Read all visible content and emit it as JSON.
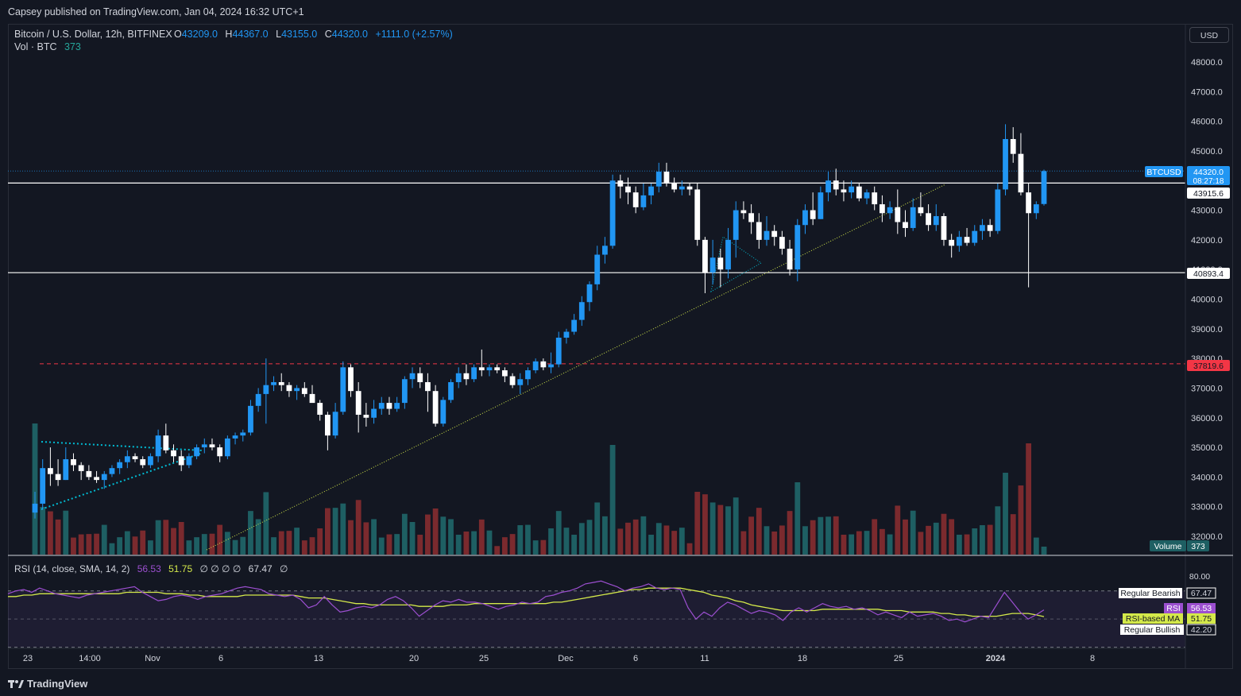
{
  "header": {
    "published": "Capsey published on TradingView.com, Jan 04, 2024 16:32 UTC+1"
  },
  "legend": {
    "symbol": "Bitcoin / U.S. Dollar, 12h, BITFINEX",
    "o_label": "O",
    "o_value": "43209.0",
    "h_label": "H",
    "h_value": "44367.0",
    "l_label": "L",
    "l_value": "43155.0",
    "c_label": "C",
    "c_value": "44320.0",
    "change": "+1111.0 (+2.57%)",
    "vol_label": "Vol · BTC",
    "vol_value": "373"
  },
  "currency": "USD",
  "rsi_legend": {
    "label": "RSI (14, close, SMA, 14, 2)",
    "rsi": "56.53",
    "ma": "51.75",
    "blanks": "∅ ∅ ∅ ∅",
    "bear": "67.47",
    "blank2": "∅"
  },
  "footer": {
    "brand": "TradingView"
  },
  "colors": {
    "up": "#2196f3",
    "down": "#ffffff",
    "vol_up": "#1e5f63",
    "vol_down": "#7b2a2e",
    "rsi": "#9c4fd0",
    "rsi_ma": "#d4e94a",
    "red_line": "#f23645"
  },
  "chart_data": [
    {
      "type": "candlestick",
      "title": "Bitcoin / U.S. Dollar, 12h, BITFINEX",
      "y_axis_ticks": [
        "48000.0",
        "47000.0",
        "46000.0",
        "45000.0",
        "44000.0",
        "43000.0",
        "42000.0",
        "41000.0",
        "40000.0",
        "39000.0",
        "38000.0",
        "37000.0",
        "36000.0",
        "35000.0",
        "34000.0",
        "33000.0",
        "32000.0"
      ],
      "ylim": [
        31400,
        48900
      ],
      "x_axis_ticks": [
        "23",
        "14:00",
        "Nov",
        "6",
        "13",
        "20",
        "25",
        "Dec",
        "6",
        "11",
        "18",
        "25",
        "2024",
        "8"
      ],
      "price_tags": {
        "last": {
          "label": "BTCUSD",
          "value": "44320.0",
          "countdown": "08:27:18"
        },
        "resistance": "43915.6",
        "support": "40893.4",
        "red_level": "37819.6",
        "volume": {
          "label": "Volume",
          "value": "373"
        }
      },
      "horizontal_levels": [
        43915.6,
        40893.4,
        37819.6
      ],
      "candles_ohlc": [
        [
          32800,
          33500,
          32600,
          33100
        ],
        [
          33100,
          34600,
          32900,
          34300
        ],
        [
          34300,
          35000,
          33700,
          34100
        ],
        [
          34100,
          34600,
          33700,
          33900
        ],
        [
          33900,
          35000,
          33900,
          34600
        ],
        [
          34600,
          34800,
          34200,
          34400
        ],
        [
          34400,
          34500,
          33900,
          34200
        ],
        [
          34200,
          34400,
          33900,
          34000
        ],
        [
          34000,
          34200,
          33800,
          33900
        ],
        [
          33900,
          34200,
          33600,
          34100
        ],
        [
          34100,
          34400,
          34000,
          34300
        ],
        [
          34300,
          34600,
          34100,
          34500
        ],
        [
          34500,
          34900,
          34300,
          34700
        ],
        [
          34700,
          34800,
          34500,
          34600
        ],
        [
          34600,
          34700,
          34300,
          34400
        ],
        [
          34400,
          34800,
          34300,
          34700
        ],
        [
          34700,
          35600,
          34500,
          35400
        ],
        [
          35400,
          35800,
          34800,
          34900
        ],
        [
          34900,
          35100,
          34500,
          34700
        ],
        [
          34700,
          34900,
          34200,
          34400
        ],
        [
          34400,
          34800,
          34300,
          34700
        ],
        [
          34700,
          35100,
          34600,
          35000
        ],
        [
          35000,
          35300,
          34800,
          35100
        ],
        [
          35100,
          35300,
          34900,
          35000
        ],
        [
          35000,
          35100,
          34500,
          34700
        ],
        [
          34700,
          35400,
          34600,
          35300
        ],
        [
          35300,
          35500,
          35100,
          35400
        ],
        [
          35400,
          35600,
          35200,
          35500
        ],
        [
          35500,
          36600,
          35400,
          36400
        ],
        [
          36400,
          37000,
          36200,
          36800
        ],
        [
          36800,
          38000,
          35800,
          37100
        ],
        [
          37100,
          37400,
          36900,
          37200
        ],
        [
          37200,
          37500,
          36900,
          37100
        ],
        [
          37100,
          37200,
          36700,
          36900
        ],
        [
          36900,
          37100,
          36600,
          37000
        ],
        [
          37000,
          37200,
          36700,
          36800
        ],
        [
          36800,
          37100,
          36600,
          36500
        ],
        [
          36500,
          36600,
          35900,
          36100
        ],
        [
          36100,
          36200,
          34900,
          35400
        ],
        [
          35400,
          36500,
          35300,
          36200
        ],
        [
          36200,
          37900,
          36100,
          37700
        ],
        [
          37700,
          37800,
          36700,
          36900
        ],
        [
          36900,
          37200,
          35500,
          36100
        ],
        [
          36100,
          36500,
          35700,
          36000
        ],
        [
          36000,
          36600,
          35800,
          36300
        ],
        [
          36300,
          36700,
          36100,
          36500
        ],
        [
          36500,
          36700,
          36100,
          36300
        ],
        [
          36300,
          36700,
          36200,
          36500
        ],
        [
          36500,
          37400,
          36300,
          37300
        ],
        [
          37300,
          37700,
          37000,
          37500
        ],
        [
          37500,
          37700,
          37000,
          37200
        ],
        [
          37200,
          37500,
          36200,
          36900
        ],
        [
          36900,
          37100,
          35700,
          35800
        ],
        [
          35800,
          36700,
          35700,
          36600
        ],
        [
          36600,
          37300,
          36500,
          37200
        ],
        [
          37200,
          37700,
          37000,
          37500
        ],
        [
          37500,
          37800,
          37100,
          37300
        ],
        [
          37300,
          37800,
          37200,
          37700
        ],
        [
          37700,
          38300,
          37400,
          37600
        ],
        [
          37600,
          37800,
          37400,
          37700
        ],
        [
          37700,
          37800,
          37500,
          37600
        ],
        [
          37600,
          37700,
          37200,
          37400
        ],
        [
          37400,
          37500,
          37000,
          37100
        ],
        [
          37100,
          37500,
          36800,
          37300
        ],
        [
          37300,
          37700,
          37100,
          37600
        ],
        [
          37600,
          38000,
          37500,
          37900
        ],
        [
          37900,
          38000,
          37600,
          37700
        ],
        [
          37700,
          38200,
          37500,
          37800
        ],
        [
          37800,
          38900,
          37700,
          38700
        ],
        [
          38700,
          39000,
          38500,
          38900
        ],
        [
          38900,
          39500,
          38800,
          39300
        ],
        [
          39300,
          40100,
          39100,
          39900
        ],
        [
          39900,
          40600,
          39600,
          40500
        ],
        [
          40500,
          41800,
          40300,
          41500
        ],
        [
          41500,
          42100,
          41200,
          41800
        ],
        [
          41800,
          44200,
          41700,
          44000
        ],
        [
          44000,
          44200,
          43400,
          43800
        ],
        [
          43800,
          44100,
          43200,
          43600
        ],
        [
          43600,
          43800,
          42900,
          43100
        ],
        [
          43100,
          43900,
          43000,
          43500
        ],
        [
          43500,
          43900,
          43200,
          43800
        ],
        [
          43800,
          44600,
          43600,
          44300
        ],
        [
          44300,
          44600,
          43800,
          43900
        ],
        [
          43900,
          44100,
          43600,
          43700
        ],
        [
          43700,
          44000,
          43500,
          43800
        ],
        [
          43800,
          43900,
          43500,
          43700
        ],
        [
          43700,
          43900,
          41800,
          42000
        ],
        [
          42000,
          42100,
          40200,
          40900
        ],
        [
          40900,
          42000,
          40500,
          41400
        ],
        [
          41400,
          41700,
          40400,
          41000
        ],
        [
          41000,
          42400,
          40700,
          42000
        ],
        [
          42000,
          43300,
          41400,
          43000
        ],
        [
          43000,
          43300,
          42700,
          42900
        ],
        [
          42900,
          43200,
          42200,
          42600
        ],
        [
          42600,
          42900,
          41700,
          42000
        ],
        [
          42000,
          42800,
          41800,
          42300
        ],
        [
          42300,
          42500,
          41800,
          42100
        ],
        [
          42100,
          42300,
          41500,
          41700
        ],
        [
          41700,
          42000,
          40800,
          41000
        ],
        [
          41000,
          42700,
          40600,
          42500
        ],
        [
          42500,
          43200,
          42200,
          43000
        ],
        [
          43000,
          43600,
          42500,
          42700
        ],
        [
          42700,
          43800,
          42700,
          43600
        ],
        [
          43600,
          44300,
          43300,
          44000
        ],
        [
          44000,
          44400,
          43500,
          43700
        ],
        [
          43700,
          44000,
          43300,
          43600
        ],
        [
          43600,
          44000,
          43400,
          43800
        ],
        [
          43800,
          43900,
          43300,
          43400
        ],
        [
          43400,
          43700,
          43200,
          43600
        ],
        [
          43600,
          43800,
          43000,
          43200
        ],
        [
          43200,
          43500,
          42600,
          42900
        ],
        [
          42900,
          43300,
          42700,
          43100
        ],
        [
          43100,
          43700,
          42200,
          42600
        ],
        [
          42600,
          43000,
          42100,
          42400
        ],
        [
          42400,
          43400,
          42300,
          43100
        ],
        [
          43100,
          43600,
          42800,
          42900
        ],
        [
          42900,
          43200,
          42300,
          42500
        ],
        [
          42500,
          43200,
          42300,
          42800
        ],
        [
          42800,
          42900,
          41800,
          42000
        ],
        [
          42000,
          42200,
          41400,
          41800
        ],
        [
          41800,
          42300,
          41600,
          42100
        ],
        [
          42100,
          42400,
          41800,
          41900
        ],
        [
          41900,
          42500,
          41800,
          42300
        ],
        [
          42300,
          42700,
          42000,
          42500
        ],
        [
          42500,
          42700,
          42100,
          42300
        ],
        [
          42300,
          43900,
          42200,
          43700
        ],
        [
          43700,
          45900,
          43500,
          45400
        ],
        [
          45400,
          45800,
          44600,
          44900
        ],
        [
          44900,
          45600,
          43500,
          43600
        ],
        [
          43600,
          43900,
          40400,
          42900
        ],
        [
          42900,
          43300,
          42700,
          43200
        ],
        [
          43209,
          44367,
          43155,
          44320
        ]
      ],
      "volume_up_down": "up=blue bars, down=red bars; last volume 373",
      "trendline": "rising dotted trendline from ~Nov 3 to ~Dec 27"
    },
    {
      "type": "line",
      "title": "RSI (14, close, SMA, 14, 2)",
      "y_axis_ticks": [
        "80.00",
        "67.47",
        "56.53",
        "51.75",
        "42.20"
      ],
      "series": [
        {
          "name": "RSI",
          "last": 56.53
        },
        {
          "name": "RSI-based MA",
          "last": 51.75
        }
      ],
      "levels": [
        {
          "name": "Regular Bearish",
          "value": 67.47
        },
        {
          "name": "Regular Bullish",
          "value": 42.2
        }
      ],
      "band": [
        70,
        30
      ],
      "rsi_values": [
        68,
        70,
        71,
        69,
        72,
        70,
        68,
        67,
        66,
        65,
        67,
        68,
        69,
        70,
        71,
        72,
        73,
        69,
        66,
        63,
        64,
        66,
        67,
        66,
        64,
        66,
        67,
        68,
        70,
        72,
        73,
        72,
        71,
        68,
        67,
        66,
        67,
        64,
        58,
        60,
        66,
        60,
        55,
        56,
        58,
        59,
        58,
        60,
        64,
        66,
        63,
        58,
        52,
        56,
        60,
        63,
        62,
        64,
        62,
        62,
        61,
        59,
        57,
        59,
        60,
        62,
        61,
        62,
        66,
        67,
        69,
        70,
        72,
        75,
        76,
        77,
        75,
        73,
        70,
        72,
        73,
        75,
        72,
        71,
        72,
        71,
        58,
        50,
        55,
        52,
        58,
        62,
        60,
        57,
        54,
        56,
        55,
        53,
        49,
        55,
        58,
        55,
        58,
        61,
        59,
        58,
        59,
        57,
        58,
        56,
        53,
        55,
        53,
        51,
        55,
        52,
        53,
        54,
        52,
        49,
        50,
        48,
        50,
        52,
        51,
        60,
        69,
        62,
        55,
        50,
        53,
        56.53
      ],
      "ma_values": [
        66,
        66,
        67,
        67,
        68,
        68,
        68,
        68,
        68,
        68,
        68,
        68,
        68,
        68,
        68,
        69,
        69,
        69,
        69,
        69,
        68,
        68,
        68,
        67,
        67,
        66,
        66,
        66,
        66,
        66,
        67,
        67,
        67,
        67,
        67,
        67,
        67,
        66,
        65,
        65,
        65,
        64,
        63,
        62,
        61,
        61,
        60,
        60,
        60,
        60,
        60,
        60,
        59,
        59,
        59,
        59,
        60,
        60,
        60,
        61,
        61,
        61,
        61,
        61,
        61,
        61,
        61,
        61,
        61,
        62,
        62,
        63,
        64,
        65,
        66,
        67,
        68,
        69,
        70,
        71,
        71,
        72,
        72,
        72,
        72,
        72,
        71,
        70,
        69,
        67,
        66,
        65,
        63,
        62,
        60,
        59,
        58,
        57,
        56,
        56,
        56,
        56,
        56,
        57,
        57,
        57,
        57,
        57,
        57,
        57,
        57,
        56,
        56,
        56,
        55,
        55,
        55,
        55,
        54,
        54,
        53,
        53,
        52,
        52,
        52,
        52,
        53,
        54,
        54,
        54,
        53,
        51.75
      ]
    }
  ]
}
